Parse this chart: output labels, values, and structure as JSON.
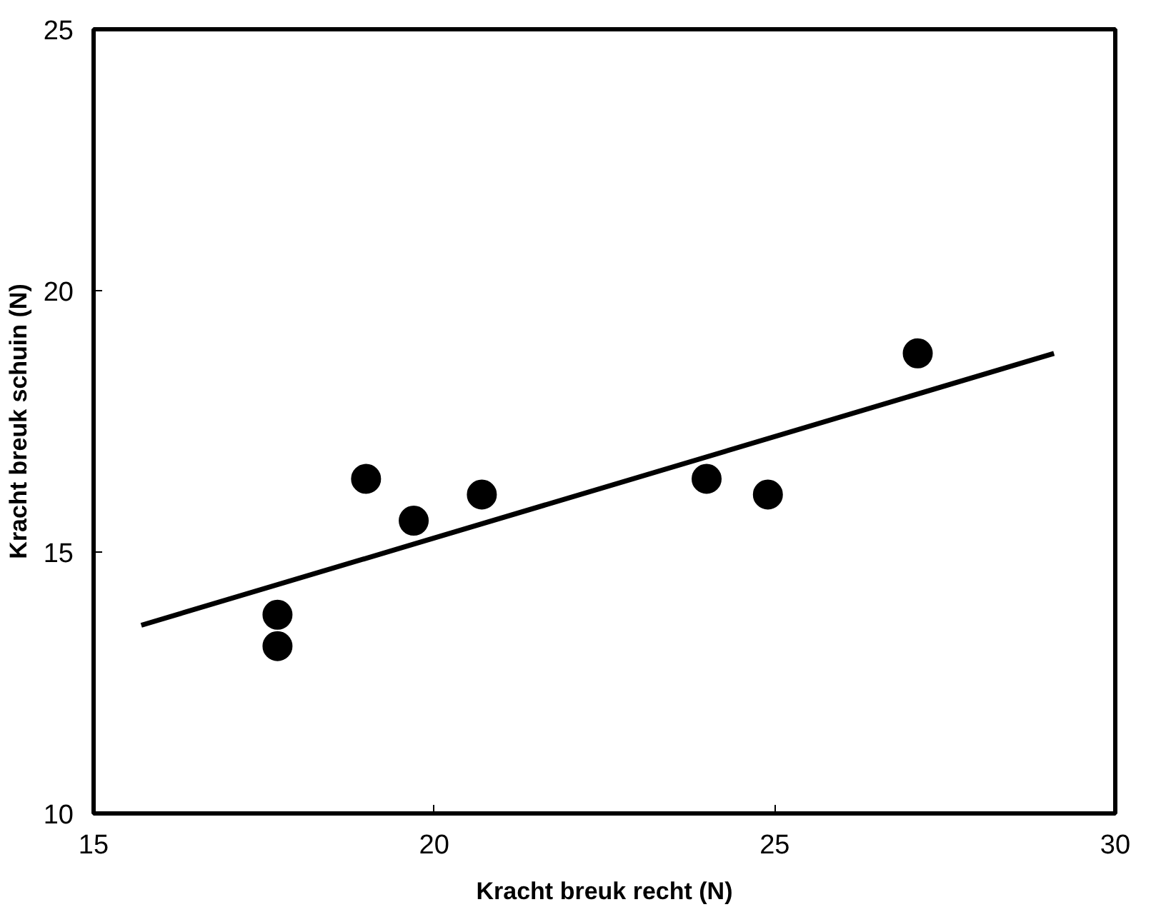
{
  "chart_data": {
    "type": "scatter",
    "xlabel": "Kracht breuk recht (N)",
    "ylabel": "Kracht breuk schuin (N)",
    "xlim": [
      15,
      30
    ],
    "xticks": [
      15,
      20,
      25,
      30
    ],
    "ylim": [
      10,
      25
    ],
    "yticks": [
      10,
      15,
      20,
      25
    ],
    "grid": false,
    "series": [
      {
        "color": "#000000",
        "marker": "circle",
        "x": [
          17.7,
          17.7,
          19.0,
          19.7,
          20.7,
          24.0,
          24.9,
          27.1
        ],
        "values": [
          13.8,
          13.2,
          16.4,
          15.6,
          16.1,
          16.4,
          16.1,
          18.8
        ]
      },
      {
        "type": "line",
        "color": "#000000",
        "marker": "none",
        "x": [
          15.7,
          29.1
        ],
        "values": [
          13.6,
          18.8
        ]
      }
    ]
  }
}
